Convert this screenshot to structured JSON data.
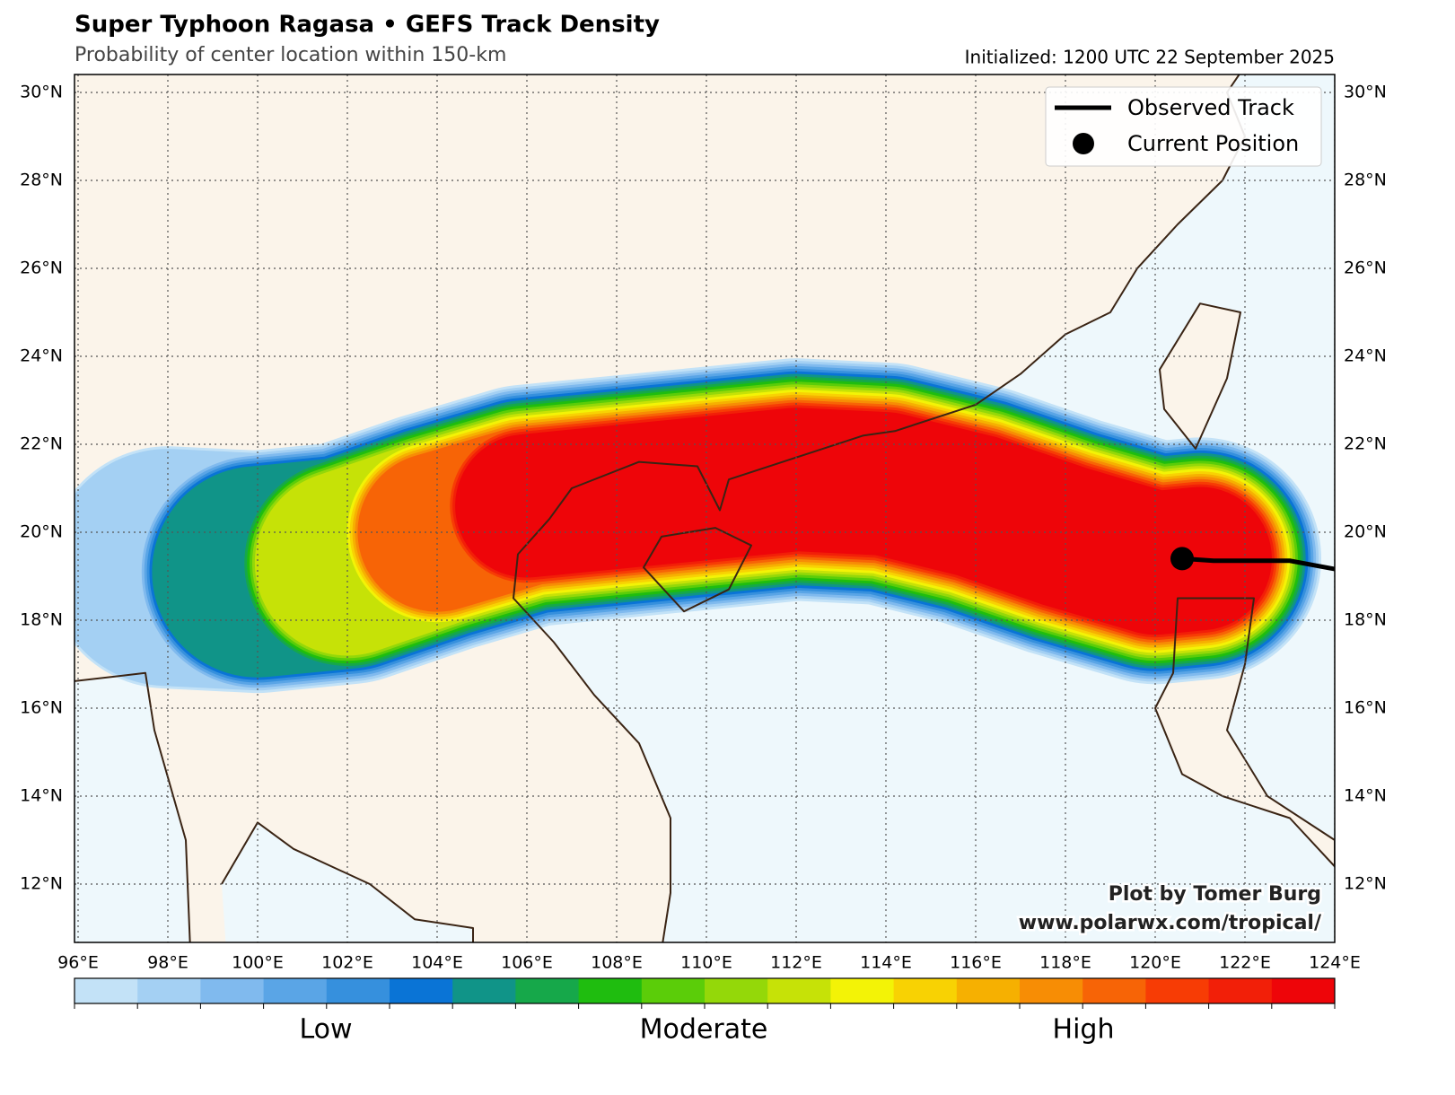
{
  "title": "Super Typhoon Ragasa • GEFS Track Density",
  "subtitle": "Probability of center location within 150-km",
  "initialized": "Initialized: 1200 UTC 22 September 2025",
  "lat_labels": [
    "30°N",
    "28°N",
    "26°N",
    "24°N",
    "22°N",
    "20°N",
    "18°N",
    "16°N",
    "14°N",
    "12°N"
  ],
  "lon_labels": [
    "96°E",
    "98°E",
    "100°E",
    "102°E",
    "104°E",
    "106°E",
    "108°E",
    "110°E",
    "112°E",
    "114°E",
    "116°E",
    "118°E",
    "120°E",
    "122°E",
    "124°E"
  ],
  "legend": [
    "Observed Track",
    "Current Position"
  ],
  "colorbar": {
    "colors": [
      "#c3e2f7",
      "#a4d0f3",
      "#80baee",
      "#5aa5e6",
      "#3690dd",
      "#0a74d6",
      "#109488",
      "#16a84a",
      "#1fbd0f",
      "#5bcd09",
      "#94d809",
      "#c6e207",
      "#f3f306",
      "#f8d203",
      "#f6b001",
      "#f78d05",
      "#f76406",
      "#f73c05",
      "#f21f08",
      "#ee0509"
    ],
    "labels": [
      "Low",
      "Moderate",
      "High"
    ]
  },
  "credits": [
    "Plot by Tomer Burg",
    "www.polarwx.com/tropical/"
  ]
}
